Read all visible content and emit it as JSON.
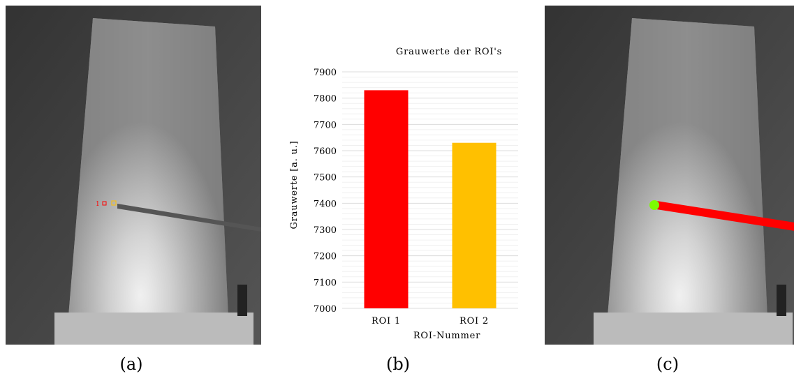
{
  "captions": {
    "a": "(a)",
    "b": "(b)",
    "c": "(c)"
  },
  "panel_a": {
    "roi_label": "1"
  },
  "colors": {
    "roi1": "#ff0000",
    "roi2": "#ffc000",
    "marker": "#7cfc00",
    "overlay_line": "#ff0000"
  },
  "chart_data": {
    "type": "bar",
    "title": "Grauwerte der ROI's",
    "xlabel": "ROI-Nummer",
    "ylabel": "Grauwerte [a. u.]",
    "categories": [
      "ROI 1",
      "ROI 2"
    ],
    "values": [
      7830,
      7630
    ],
    "bar_colors": [
      "#ff0000",
      "#ffc000"
    ],
    "ylim": [
      7000,
      7900
    ],
    "yticks": [
      7000,
      7100,
      7200,
      7300,
      7400,
      7500,
      7600,
      7700,
      7800,
      7900
    ],
    "grid": true
  }
}
